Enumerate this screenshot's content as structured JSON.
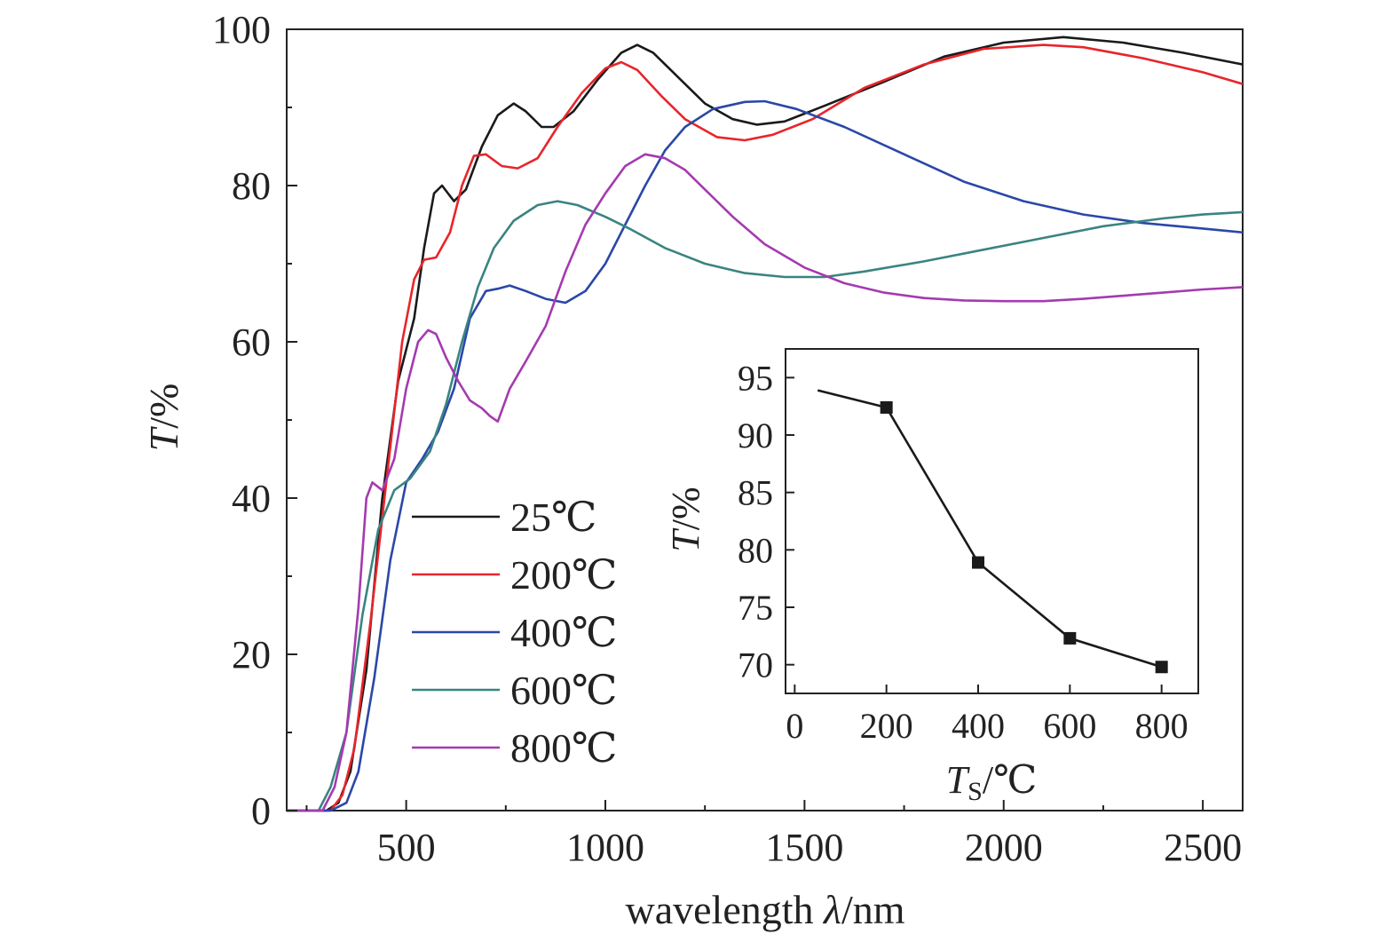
{
  "chart_data": [
    {
      "type": "line",
      "xlabel": "wavelength λ/nm",
      "ylabel": "T/%",
      "xlim": [
        200,
        2600
      ],
      "ylim": [
        0,
        100
      ],
      "xticks": [
        "500",
        "1000",
        "1500",
        "2000",
        "2500"
      ],
      "yticks": [
        "0",
        "20",
        "40",
        "60",
        "80",
        "100"
      ],
      "grid": false,
      "legend_position": "bottom-left",
      "series": [
        {
          "name": "25℃",
          "color": "#1a1a1a",
          "points": [
            [
              200,
              0
            ],
            [
              300,
              0
            ],
            [
              330,
              1
            ],
            [
              360,
              5
            ],
            [
              400,
              18
            ],
            [
              440,
              40
            ],
            [
              480,
              55
            ],
            [
              520,
              63
            ],
            [
              545,
              72
            ],
            [
              570,
              79
            ],
            [
              590,
              80
            ],
            [
              620,
              78
            ],
            [
              650,
              79.5
            ],
            [
              690,
              85
            ],
            [
              730,
              89
            ],
            [
              770,
              90.5
            ],
            [
              800,
              89.5
            ],
            [
              840,
              87.5
            ],
            [
              870,
              87.5
            ],
            [
              920,
              89.5
            ],
            [
              980,
              93.5
            ],
            [
              1040,
              97
            ],
            [
              1080,
              98
            ],
            [
              1120,
              97
            ],
            [
              1180,
              94
            ],
            [
              1250,
              90.5
            ],
            [
              1320,
              88.5
            ],
            [
              1380,
              87.8
            ],
            [
              1450,
              88.2
            ],
            [
              1550,
              90.2
            ],
            [
              1700,
              93.3
            ],
            [
              1850,
              96.5
            ],
            [
              2000,
              98.3
            ],
            [
              2150,
              99
            ],
            [
              2300,
              98.3
            ],
            [
              2450,
              97
            ],
            [
              2600,
              95.5
            ]
          ]
        },
        {
          "name": "200℃",
          "color": "#e8252a",
          "points": [
            [
              200,
              0
            ],
            [
              310,
              0
            ],
            [
              340,
              2
            ],
            [
              370,
              8
            ],
            [
              410,
              24
            ],
            [
              450,
              42
            ],
            [
              490,
              60
            ],
            [
              520,
              68
            ],
            [
              545,
              70.5
            ],
            [
              575,
              70.8
            ],
            [
              610,
              74
            ],
            [
              640,
              80
            ],
            [
              670,
              83.8
            ],
            [
              700,
              84
            ],
            [
              740,
              82.5
            ],
            [
              780,
              82.2
            ],
            [
              830,
              83.5
            ],
            [
              880,
              87.5
            ],
            [
              940,
              91.8
            ],
            [
              1000,
              95
            ],
            [
              1040,
              95.8
            ],
            [
              1080,
              94.8
            ],
            [
              1140,
              91.5
            ],
            [
              1200,
              88.5
            ],
            [
              1280,
              86.2
            ],
            [
              1350,
              85.8
            ],
            [
              1420,
              86.5
            ],
            [
              1520,
              88.5
            ],
            [
              1650,
              92.5
            ],
            [
              1800,
              95.5
            ],
            [
              1950,
              97.5
            ],
            [
              2100,
              98
            ],
            [
              2200,
              97.7
            ],
            [
              2350,
              96.3
            ],
            [
              2500,
              94.5
            ],
            [
              2600,
              93
            ]
          ]
        },
        {
          "name": "400℃",
          "color": "#2b47a8",
          "points": [
            [
              200,
              0
            ],
            [
              310,
              0
            ],
            [
              350,
              1
            ],
            [
              380,
              5
            ],
            [
              420,
              17
            ],
            [
              460,
              32
            ],
            [
              500,
              42
            ],
            [
              540,
              45
            ],
            [
              580,
              48.5
            ],
            [
              620,
              54
            ],
            [
              660,
              63
            ],
            [
              700,
              66.5
            ],
            [
              730,
              66.8
            ],
            [
              760,
              67.2
            ],
            [
              800,
              66.5
            ],
            [
              850,
              65.5
            ],
            [
              900,
              65
            ],
            [
              950,
              66.5
            ],
            [
              1000,
              70
            ],
            [
              1050,
              75
            ],
            [
              1100,
              80
            ],
            [
              1150,
              84.5
            ],
            [
              1200,
              87.5
            ],
            [
              1270,
              89.8
            ],
            [
              1350,
              90.7
            ],
            [
              1400,
              90.8
            ],
            [
              1480,
              89.8
            ],
            [
              1600,
              87.5
            ],
            [
              1750,
              84
            ],
            [
              1900,
              80.5
            ],
            [
              2050,
              78
            ],
            [
              2200,
              76.3
            ],
            [
              2350,
              75.2
            ],
            [
              2500,
              74.5
            ],
            [
              2600,
              74
            ]
          ]
        },
        {
          "name": "600℃",
          "color": "#3a8481",
          "points": [
            [
              200,
              0
            ],
            [
              280,
              0
            ],
            [
              310,
              3
            ],
            [
              350,
              10
            ],
            [
              390,
              25
            ],
            [
              430,
              36
            ],
            [
              470,
              41
            ],
            [
              510,
              42.5
            ],
            [
              560,
              46
            ],
            [
              600,
              52
            ],
            [
              640,
              60
            ],
            [
              680,
              67
            ],
            [
              720,
              72
            ],
            [
              770,
              75.5
            ],
            [
              830,
              77.5
            ],
            [
              880,
              78
            ],
            [
              930,
              77.5
            ],
            [
              1000,
              76
            ],
            [
              1060,
              74.5
            ],
            [
              1150,
              72
            ],
            [
              1250,
              70
            ],
            [
              1350,
              68.8
            ],
            [
              1450,
              68.3
            ],
            [
              1550,
              68.3
            ],
            [
              1650,
              69
            ],
            [
              1800,
              70.3
            ],
            [
              1950,
              71.8
            ],
            [
              2100,
              73.3
            ],
            [
              2250,
              74.8
            ],
            [
              2400,
              75.8
            ],
            [
              2500,
              76.3
            ],
            [
              2600,
              76.6
            ]
          ]
        },
        {
          "name": "800℃",
          "color": "#a53ab0",
          "points": [
            [
              200,
              0
            ],
            [
              290,
              0
            ],
            [
              320,
              3
            ],
            [
              350,
              10
            ],
            [
              380,
              26
            ],
            [
              400,
              40
            ],
            [
              415,
              42
            ],
            [
              440,
              41
            ],
            [
              470,
              45
            ],
            [
              500,
              54
            ],
            [
              530,
              60
            ],
            [
              555,
              61.5
            ],
            [
              575,
              61
            ],
            [
              600,
              58
            ],
            [
              630,
              55
            ],
            [
              660,
              52.5
            ],
            [
              690,
              51.5
            ],
            [
              710,
              50.5
            ],
            [
              730,
              49.8
            ],
            [
              760,
              54
            ],
            [
              800,
              57.5
            ],
            [
              850,
              62
            ],
            [
              900,
              69
            ],
            [
              950,
              75
            ],
            [
              1000,
              79
            ],
            [
              1050,
              82.5
            ],
            [
              1100,
              84
            ],
            [
              1150,
              83.5
            ],
            [
              1200,
              82
            ],
            [
              1250,
              79.5
            ],
            [
              1320,
              76
            ],
            [
              1400,
              72.5
            ],
            [
              1500,
              69.5
            ],
            [
              1600,
              67.5
            ],
            [
              1700,
              66.3
            ],
            [
              1800,
              65.6
            ],
            [
              1900,
              65.3
            ],
            [
              2000,
              65.2
            ],
            [
              2100,
              65.2
            ],
            [
              2200,
              65.5
            ],
            [
              2300,
              65.9
            ],
            [
              2400,
              66.3
            ],
            [
              2500,
              66.7
            ],
            [
              2600,
              67
            ]
          ]
        }
      ]
    },
    {
      "type": "line",
      "xlabel": "T_S/℃",
      "ylabel": "T/%",
      "xlim": [
        -20,
        880
      ],
      "ylim": [
        67.5,
        97.5
      ],
      "xticks": [
        "0",
        "200",
        "400",
        "600",
        "800"
      ],
      "yticks": [
        "70",
        "75",
        "80",
        "85",
        "90",
        "95"
      ],
      "grid": false,
      "line_start": [
        50,
        93.9
      ],
      "x": [
        200,
        400,
        600,
        800
      ],
      "y": [
        92.4,
        78.9,
        72.3,
        69.8
      ]
    }
  ]
}
